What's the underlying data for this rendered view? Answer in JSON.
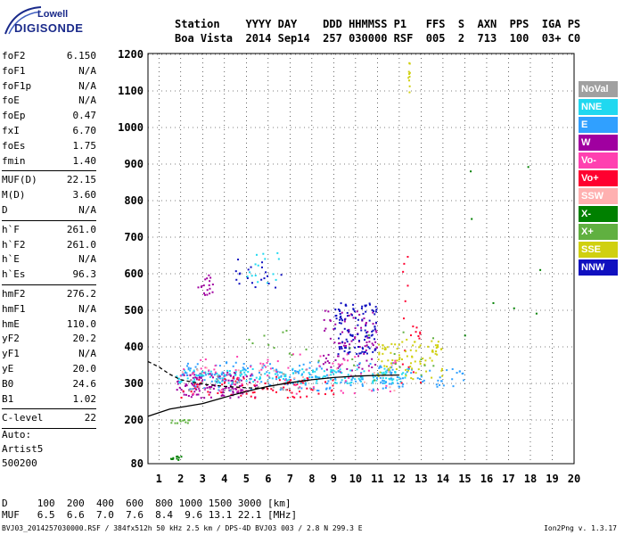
{
  "logo": {
    "line1": "Lowell",
    "line2": "DIGISONDE"
  },
  "header": {
    "line1": "Station    YYYY DAY    DDD HHMMSS P1   FFS  S  AXN  PPS  IGA PS",
    "line2": "Boa Vista  2014 Sep14  257 030000 RSF  005  2  713  100  03+ C0"
  },
  "params": [
    {
      "k": "foF2",
      "v": "6.150"
    },
    {
      "k": "foF1",
      "v": "N/A"
    },
    {
      "k": "foF1p",
      "v": "N/A"
    },
    {
      "k": "foE",
      "v": "N/A"
    },
    {
      "k": "foEp",
      "v": "0.47"
    },
    {
      "k": "fxI",
      "v": "6.70"
    },
    {
      "k": "foEs",
      "v": "1.75"
    },
    {
      "k": "fmin",
      "v": "1.40"
    },
    {
      "sep": true
    },
    {
      "k": "MUF(D)",
      "v": "22.15"
    },
    {
      "k": "M(D)",
      "v": "3.60"
    },
    {
      "k": "D",
      "v": "N/A"
    },
    {
      "sep": true
    },
    {
      "k": "h`F",
      "v": "261.0"
    },
    {
      "k": "h`F2",
      "v": "261.0"
    },
    {
      "k": "h`E",
      "v": "N/A"
    },
    {
      "k": "h`Es",
      "v": "96.3"
    },
    {
      "sep": true
    },
    {
      "k": "hmF2",
      "v": "276.2"
    },
    {
      "k": "hmF1",
      "v": "N/A"
    },
    {
      "k": "hmE",
      "v": "110.0"
    },
    {
      "k": "yF2",
      "v": "20.2"
    },
    {
      "k": "yF1",
      "v": "N/A"
    },
    {
      "k": "yE",
      "v": "20.0"
    },
    {
      "k": "B0",
      "v": "24.6"
    },
    {
      "k": "B1",
      "v": "1.02"
    },
    {
      "sep": true
    },
    {
      "k": "C-level",
      "v": "22"
    },
    {
      "sep": true
    }
  ],
  "auto": {
    "line1": "Auto:",
    "line2": "Artist5",
    "line3": "500200"
  },
  "legend": [
    {
      "label": "NoVal",
      "color": "#a0a0a0"
    },
    {
      "label": "NNE",
      "color": "#20d8f0"
    },
    {
      "label": "E",
      "color": "#30a0ff"
    },
    {
      "label": "W",
      "color": "#a000a0"
    },
    {
      "label": "Vo-",
      "color": "#ff40b0"
    },
    {
      "label": "Vo+",
      "color": "#ff0030"
    },
    {
      "label": "SSW",
      "color": "#ffb0b0"
    },
    {
      "label": "X-",
      "color": "#008000"
    },
    {
      "label": "X+",
      "color": "#60b040"
    },
    {
      "label": "SSE",
      "color": "#d0d010"
    },
    {
      "label": "NNW",
      "color": "#1010c0"
    }
  ],
  "dmuf": {
    "d_line": "D     100  200  400  600  800 1000 1500 3000 [km]",
    "muf_line": "MUF   6.5  6.6  7.0  7.6  8.4  9.6 13.1 22.1 [MHz]"
  },
  "footer": {
    "left": "BVJ03_2014257030000.RSF / 384fx512h 50 kHz 2.5 km / DPS-4D BVJ03 003 / 2.8 N 299.3 E",
    "right": "Ion2Png v. 1.3.17"
  },
  "chart_data": {
    "type": "scatter",
    "x_ticks": [
      1,
      2,
      3,
      4,
      5,
      6,
      7,
      8,
      9,
      10,
      11,
      12,
      13,
      14,
      15,
      16,
      17,
      18,
      19,
      20
    ],
    "y_ticks": [
      80,
      200,
      300,
      400,
      500,
      600,
      700,
      800,
      900,
      1000,
      1100,
      1200
    ],
    "xlim": [
      0.5,
      20
    ],
    "ylim": [
      80,
      1200
    ],
    "grid": true,
    "series": [
      {
        "color": "#a000a0",
        "clusters": [
          {
            "x": [
              1.8,
              5.5
            ],
            "y": [
              260,
              330
            ],
            "n": 140
          },
          {
            "x": [
              8.5,
              11
            ],
            "y": [
              330,
              500
            ],
            "n": 90
          },
          {
            "x": [
              2.8,
              3.5
            ],
            "y": [
              540,
              600
            ],
            "n": 18
          }
        ]
      },
      {
        "color": "#20d8f0",
        "clusters": [
          {
            "x": [
              1.8,
              12.5
            ],
            "y": [
              300,
              340
            ],
            "n": 200
          },
          {
            "x": [
              4,
              6.5
            ],
            "y": [
              570,
              660
            ],
            "n": 15
          }
        ]
      },
      {
        "color": "#30a0ff",
        "clusters": [
          {
            "x": [
              2,
              12
            ],
            "y": [
              280,
              360
            ],
            "n": 160
          },
          {
            "x": [
              11.5,
              15
            ],
            "y": [
              290,
              340
            ],
            "n": 40
          }
        ]
      },
      {
        "color": "#ff0030",
        "clusters": [
          {
            "x": [
              2,
              9
            ],
            "y": [
              260,
              320
            ],
            "n": 80
          },
          {
            "x": [
              12,
              13
            ],
            "y": [
              300,
              700
            ],
            "n": 20
          }
        ]
      },
      {
        "color": "#1010c0",
        "clusters": [
          {
            "x": [
              9,
              11
            ],
            "y": [
              380,
              520
            ],
            "n": 110
          },
          {
            "x": [
              4.5,
              7
            ],
            "y": [
              560,
              640
            ],
            "n": 20
          }
        ]
      },
      {
        "color": "#d0d010",
        "clusters": [
          {
            "x": [
              11,
              14
            ],
            "y": [
              310,
              420
            ],
            "n": 90
          },
          {
            "x": [
              12.4,
              12.5
            ],
            "y": [
              1070,
              1190
            ],
            "n": 10
          }
        ]
      },
      {
        "color": "#ff40b0",
        "clusters": [
          {
            "x": [
              2,
              12
            ],
            "y": [
              270,
              380
            ],
            "n": 70
          }
        ]
      },
      {
        "color": "#008000",
        "clusters": [
          {
            "x": [
              1.5,
              2.2
            ],
            "y": [
              90,
              100
            ],
            "n": 10
          },
          {
            "x": [
              15,
              19
            ],
            "y": [
              400,
              900
            ],
            "n": 8
          }
        ]
      },
      {
        "color": "#60b040",
        "clusters": [
          {
            "x": [
              1.5,
              2.5
            ],
            "y": [
              190,
              200
            ],
            "n": 12
          },
          {
            "x": [
              5,
              14
            ],
            "y": [
              300,
              450
            ],
            "n": 25
          }
        ]
      },
      {
        "color": "#a0a0a0",
        "clusters": [
          {
            "x": [
              2,
              8
            ],
            "y": [
              280,
              340
            ],
            "n": 30
          }
        ]
      },
      {
        "color": "#ffb0b0",
        "clusters": [
          {
            "x": [
              2,
              12
            ],
            "y": [
              280,
              350
            ],
            "n": 25
          }
        ]
      }
    ],
    "lines": [
      {
        "name": "",
        "color": "#000",
        "points": [
          [
            0.5,
            210
          ],
          [
            1.5,
            230
          ],
          [
            3,
            245
          ],
          [
            4,
            262
          ],
          [
            5,
            278
          ],
          [
            6,
            292
          ],
          [
            7,
            302
          ],
          [
            8,
            310
          ],
          [
            9,
            316
          ],
          [
            10,
            320
          ],
          [
            11,
            322
          ],
          [
            12,
            323
          ]
        ]
      },
      {
        "name": "",
        "color": "#000",
        "dash": true,
        "points": [
          [
            0.5,
            360
          ],
          [
            1,
            345
          ],
          [
            1.5,
            325
          ],
          [
            2,
            310
          ],
          [
            3,
            298
          ],
          [
            4,
            292
          ],
          [
            5,
            288
          ],
          [
            6,
            286
          ]
        ]
      }
    ]
  }
}
